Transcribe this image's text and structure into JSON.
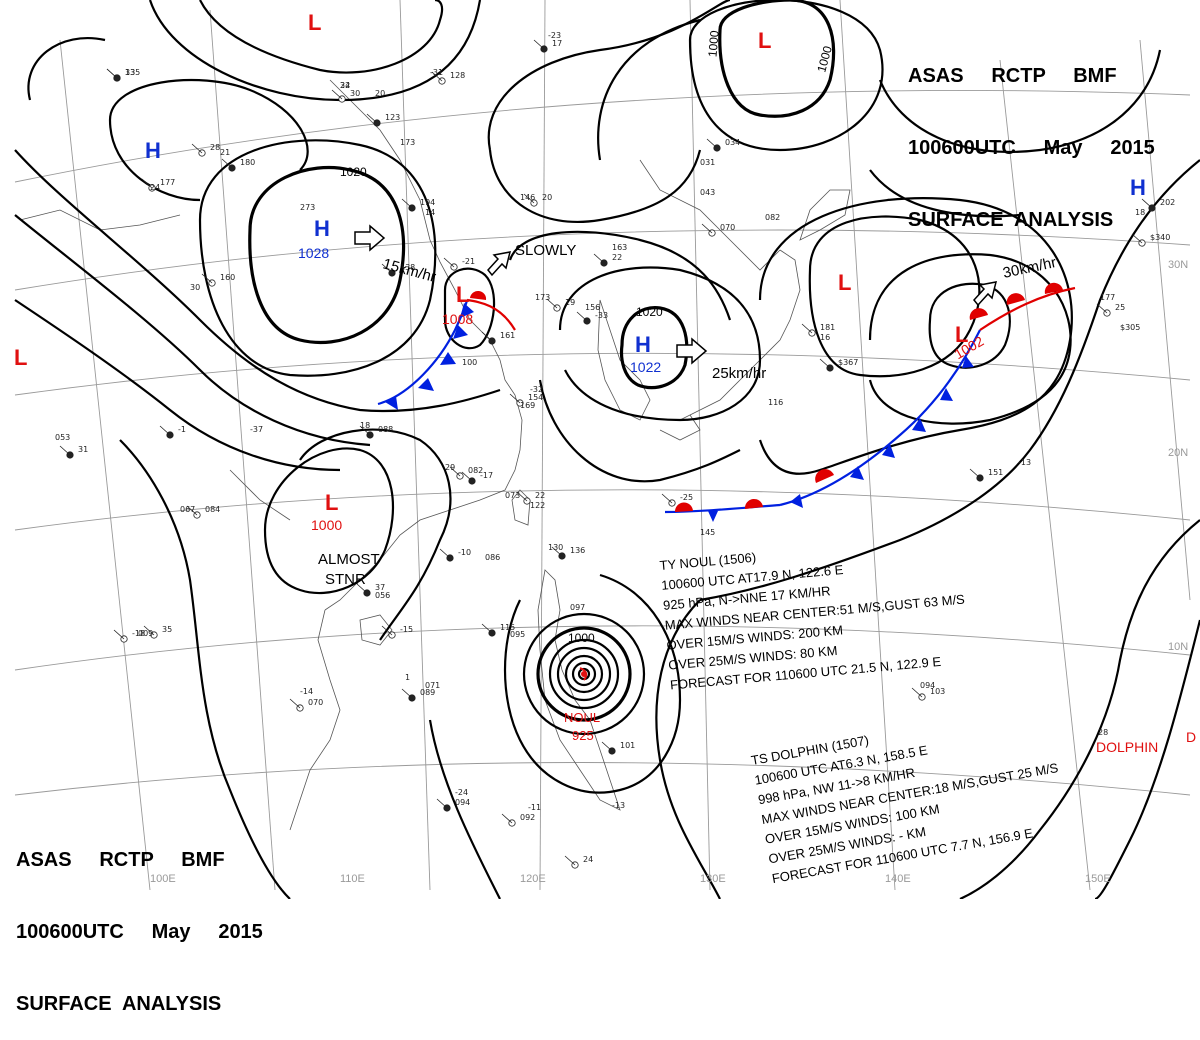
{
  "header_top": {
    "line1": "ASAS     RCTP     BMF",
    "line2": "100600UTC     May     2015",
    "line3": "SURFACE  ANALYSIS"
  },
  "header_bottom": {
    "line1": "ASAS     RCTP     BMF",
    "line2": "100600UTC     May     2015",
    "line3": "SURFACE  ANALYSIS"
  },
  "colors": {
    "high": "#1030d0",
    "low": "#e01010",
    "cold_front": "#0020e0",
    "warm_front": "#e00000",
    "isobar": "#000000",
    "grid": "#9a9a9a",
    "coast": "#555555"
  },
  "grid_labels": {
    "longitudes": [
      "100E",
      "110E",
      "120E",
      "130E",
      "140E",
      "150E"
    ],
    "latitudes": [
      "30N",
      "20N",
      "10N"
    ]
  },
  "pressure_centers": [
    {
      "type": "H",
      "value": "1028",
      "name": "high-center-china"
    },
    {
      "type": "H",
      "value": "1022",
      "name": "high-center-korea"
    },
    {
      "type": "H",
      "value": "",
      "name": "high-center-west"
    },
    {
      "type": "H",
      "value": "",
      "name": "high-center-east"
    },
    {
      "type": "L",
      "value": "1008",
      "name": "low-center-east-china"
    },
    {
      "type": "L",
      "value": "1000",
      "name": "low-center-south-china"
    },
    {
      "type": "L",
      "value": "1002",
      "name": "low-center-pacific"
    },
    {
      "type": "L",
      "value": "",
      "name": "low-center-nw"
    },
    {
      "type": "L",
      "value": "",
      "name": "low-center-north"
    },
    {
      "type": "L",
      "value": "",
      "name": "low-center-west"
    },
    {
      "type": "L",
      "value": "",
      "name": "low-center-mid-pacific"
    }
  ],
  "isobar_labels": [
    "1020",
    "1020",
    "1000",
    "1000",
    "1000"
  ],
  "movements": [
    "15km/hr",
    "SLOWLY",
    "25km/hr",
    "30km/hr"
  ],
  "almost_stnr": {
    "line1": "ALMOST",
    "line2": "STNR"
  },
  "typhoon_marker": {
    "name": "NOUL",
    "pressure": "925"
  },
  "dolphin_marker": {
    "name": "DOLPHIN"
  },
  "typhoon_info": [
    "TY  NOUL  (1506)",
    "100600 UTC  AT17.9 N, 122.6 E",
    "925 hPa, N->NNE  17 KM/HR",
    "MAX WINDS NEAR CENTER:51 M/S,GUST 63 M/S",
    "OVER 15M/S WINDS: 200 KM",
    "OVER 25M/S WINDS: 80 KM",
    "FORECAST FOR 110600 UTC 21.5 N, 122.9 E"
  ],
  "dolphin_info": [
    "TS  DOLPHIN  (1507)",
    "100600 UTC  AT6.3 N, 158.5 E",
    "998 hPa, NW  11->8 KM/HR",
    "MAX WINDS NEAR CENTER:18 M/S,GUST 25 M/S",
    "OVER 15M/S WINDS: 100 KM",
    "OVER 25M/S WINDS: - KM",
    "FORECAST FOR 110600 UTC 7.7 N, 156.9 E"
  ],
  "station_values": [
    "135",
    "24",
    "30",
    "20",
    "123",
    "173",
    "28",
    "21",
    "180",
    "24",
    "177",
    "273",
    "194",
    "14",
    "160",
    "30",
    "138",
    "-31",
    "128",
    "-23",
    "17",
    "146",
    "20",
    "163",
    "22",
    "173",
    "19",
    "156",
    "-33",
    "043",
    "070",
    "082",
    "034",
    "031",
    "181",
    "16",
    "$367",
    "177",
    "25",
    "$305",
    "202",
    "18",
    "$340",
    "116",
    "088",
    "18",
    "082",
    "29",
    "-17",
    "073",
    "22",
    "122",
    "-10",
    "086",
    "-25",
    "145",
    "136",
    "130",
    "24",
    "097",
    "115",
    "095",
    "-15",
    "071",
    "089",
    "-14",
    "070",
    "-24",
    "094",
    "-11",
    "092",
    "-13",
    "101",
    "094",
    "103",
    "-13",
    "151",
    "28",
    "084",
    "067",
    "31",
    "053",
    "35",
    "009",
    "37",
    "056",
    "-21",
    "100",
    "161",
    "-32",
    "154",
    "169",
    "-1",
    "-37",
    "-18",
    "1",
    "33",
    "32"
  ]
}
